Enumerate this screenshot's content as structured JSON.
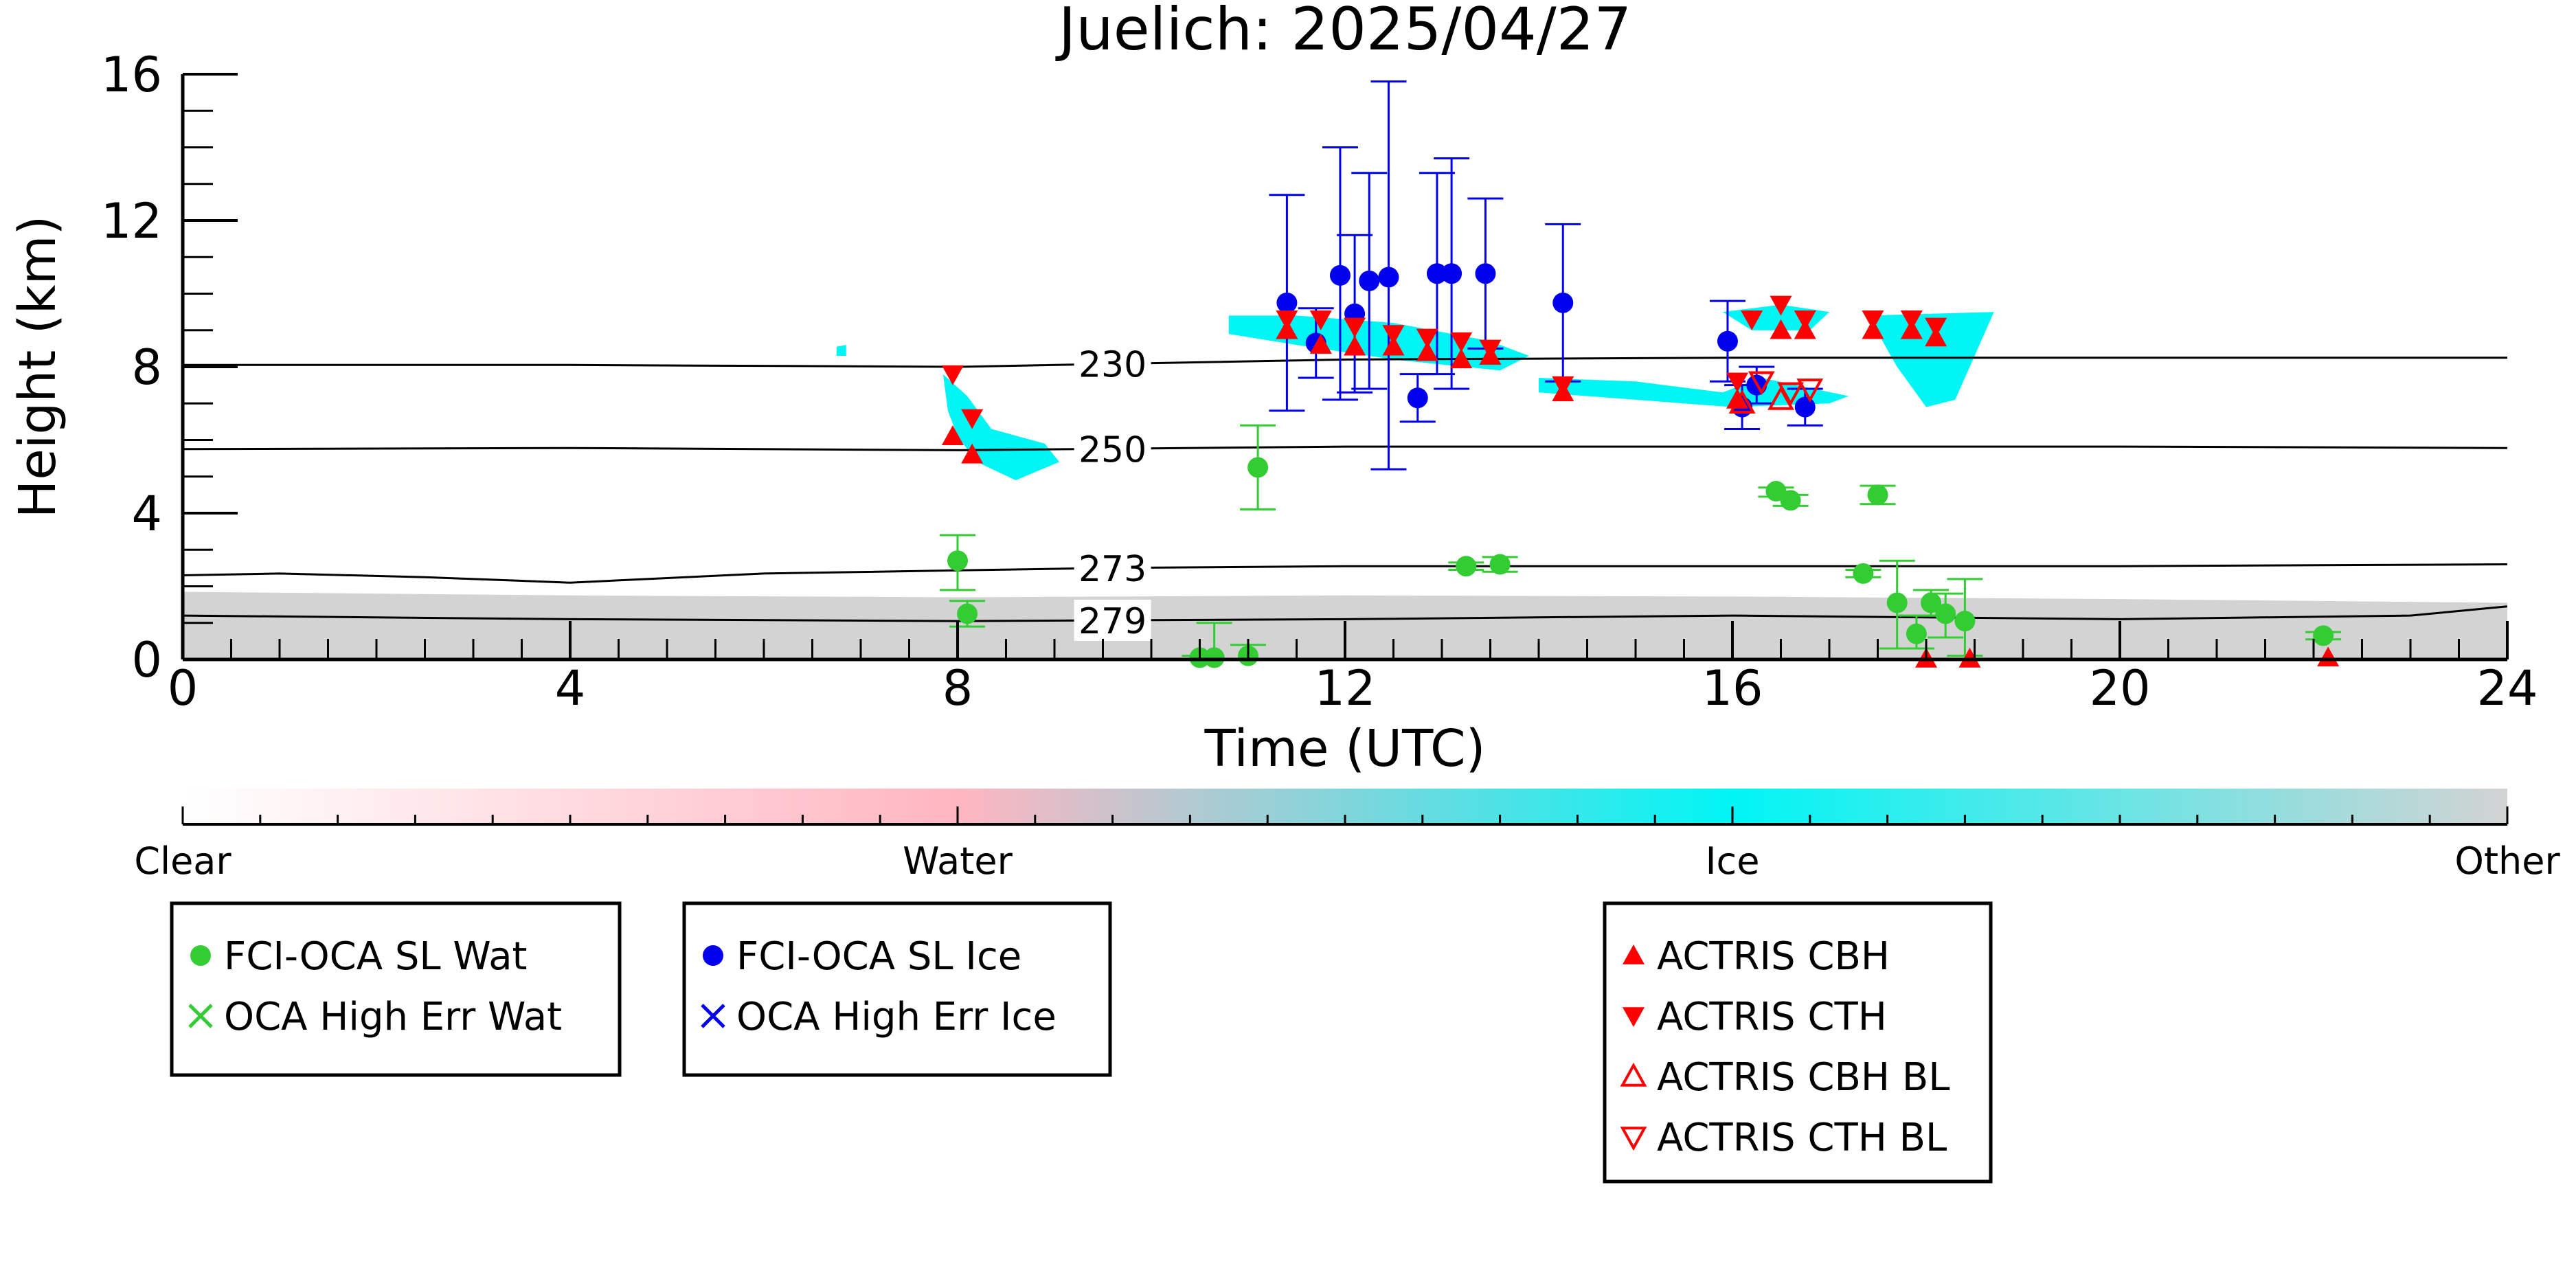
{
  "chart_data": {
    "type": "scatter",
    "title": "Juelich: 2025/04/27",
    "xlabel": "Time (UTC)",
    "ylabel": "Height (km)",
    "xlim": [
      0,
      24
    ],
    "ylim": [
      0,
      16
    ],
    "xticks": [
      0,
      4,
      8,
      12,
      16,
      20,
      24
    ],
    "yticks": [
      0,
      4,
      8,
      12,
      16
    ],
    "grid": false,
    "colors": {
      "water_marker": "#33cc33",
      "ice_marker": "#0000ee",
      "actris": "#ff0000",
      "ice_cloud": "#00f5f5",
      "other": "#d3d3d3"
    },
    "contours": [
      {
        "label": "230",
        "points": [
          [
            0,
            8.05
          ],
          [
            4,
            8.05
          ],
          [
            8,
            8.0
          ],
          [
            12,
            8.2
          ],
          [
            16,
            8.25
          ],
          [
            20,
            8.25
          ],
          [
            24,
            8.25
          ]
        ]
      },
      {
        "label": "250",
        "points": [
          [
            0,
            5.75
          ],
          [
            4,
            5.78
          ],
          [
            8,
            5.72
          ],
          [
            12,
            5.82
          ],
          [
            16,
            5.82
          ],
          [
            20,
            5.82
          ],
          [
            24,
            5.78
          ]
        ]
      },
      {
        "label": "273",
        "points": [
          [
            0,
            2.3
          ],
          [
            1,
            2.35
          ],
          [
            2.5,
            2.25
          ],
          [
            4,
            2.1
          ],
          [
            6,
            2.35
          ],
          [
            9.5,
            2.5
          ],
          [
            12,
            2.55
          ],
          [
            16,
            2.55
          ],
          [
            20,
            2.55
          ],
          [
            24,
            2.6
          ]
        ]
      },
      {
        "label": "279",
        "points": [
          [
            0,
            1.2
          ],
          [
            4,
            1.1
          ],
          [
            8,
            1.05
          ],
          [
            12,
            1.1
          ],
          [
            16,
            1.2
          ],
          [
            20,
            1.1
          ],
          [
            23,
            1.2
          ],
          [
            24,
            1.45
          ]
        ]
      }
    ],
    "cloud_regions": [
      {
        "phase": "Ice",
        "points": [
          [
            7.85,
            7.8
          ],
          [
            8.1,
            7.2
          ],
          [
            8.35,
            6.3
          ],
          [
            8.9,
            5.9
          ],
          [
            9.05,
            5.4
          ],
          [
            8.6,
            4.9
          ],
          [
            8.2,
            5.4
          ],
          [
            8.0,
            6.1
          ],
          [
            7.9,
            6.8
          ]
        ]
      },
      {
        "phase": "Ice",
        "points": [
          [
            6.75,
            8.55
          ],
          [
            6.85,
            8.6
          ],
          [
            6.85,
            8.3
          ],
          [
            6.75,
            8.3
          ]
        ]
      },
      {
        "phase": "Ice",
        "points": [
          [
            10.8,
            9.4
          ],
          [
            11.5,
            9.4
          ],
          [
            12.5,
            9.2
          ],
          [
            13.5,
            8.7
          ],
          [
            13.9,
            8.3
          ],
          [
            13.6,
            7.9
          ],
          [
            12.5,
            8.2
          ],
          [
            11.5,
            8.6
          ],
          [
            10.8,
            8.9
          ]
        ]
      },
      {
        "phase": "Ice",
        "points": [
          [
            14.0,
            7.7
          ],
          [
            15.0,
            7.6
          ],
          [
            15.9,
            7.3
          ],
          [
            16.3,
            7.7
          ],
          [
            17.2,
            7.2
          ],
          [
            17.0,
            7.0
          ],
          [
            16.0,
            6.9
          ],
          [
            15.0,
            7.1
          ],
          [
            14.0,
            7.3
          ]
        ]
      },
      {
        "phase": "Ice",
        "points": [
          [
            15.9,
            9.5
          ],
          [
            16.5,
            9.7
          ],
          [
            17.0,
            9.5
          ],
          [
            16.8,
            9.0
          ],
          [
            16.2,
            9.0
          ]
        ]
      },
      {
        "phase": "Ice",
        "points": [
          [
            17.4,
            9.4
          ],
          [
            18.7,
            9.5
          ],
          [
            18.3,
            7.1
          ],
          [
            18.0,
            6.9
          ],
          [
            17.7,
            8.0
          ]
        ]
      }
    ],
    "other_band": {
      "phase": "Other",
      "points": [
        [
          0,
          1.85
        ],
        [
          4,
          1.75
        ],
        [
          8,
          1.7
        ],
        [
          12,
          1.75
        ],
        [
          16,
          1.72
        ],
        [
          20,
          1.65
        ],
        [
          24,
          1.55
        ]
      ]
    },
    "series": [
      {
        "name": "FCI-OCA SL Wat",
        "marker": "filled-circle",
        "color": "#33cc33",
        "points": [
          {
            "x": 8.0,
            "y": 2.7,
            "ylo": 1.9,
            "yhi": 3.4
          },
          {
            "x": 8.1,
            "y": 1.25,
            "ylo": 0.9,
            "yhi": 1.6
          },
          {
            "x": 10.5,
            "y": 0.05,
            "ylo": 0.0,
            "yhi": 0.1
          },
          {
            "x": 10.65,
            "y": 0.05,
            "ylo": 0.0,
            "yhi": 1.0
          },
          {
            "x": 11.0,
            "y": 0.1,
            "ylo": 0.0,
            "yhi": 0.4
          },
          {
            "x": 11.1,
            "y": 5.25,
            "ylo": 4.1,
            "yhi": 6.4
          },
          {
            "x": 13.25,
            "y": 2.55,
            "ylo": 2.45,
            "yhi": 2.65
          },
          {
            "x": 13.6,
            "y": 2.6,
            "ylo": 2.4,
            "yhi": 2.8
          },
          {
            "x": 16.45,
            "y": 4.6,
            "ylo": 4.45,
            "yhi": 4.7
          },
          {
            "x": 16.6,
            "y": 4.35,
            "ylo": 4.2,
            "yhi": 4.5
          },
          {
            "x": 17.35,
            "y": 2.35,
            "ylo": 2.25,
            "yhi": 2.45
          },
          {
            "x": 17.5,
            "y": 4.5,
            "ylo": 4.25,
            "yhi": 4.75
          },
          {
            "x": 17.7,
            "y": 1.55,
            "ylo": 0.3,
            "yhi": 2.7
          },
          {
            "x": 17.9,
            "y": 0.7,
            "ylo": 0.3,
            "yhi": 1.2
          },
          {
            "x": 18.05,
            "y": 1.55,
            "ylo": 1.2,
            "yhi": 1.9
          },
          {
            "x": 18.2,
            "y": 1.25,
            "ylo": 0.6,
            "yhi": 1.8
          },
          {
            "x": 18.4,
            "y": 1.05,
            "ylo": 0.1,
            "yhi": 2.2
          },
          {
            "x": 22.1,
            "y": 0.65,
            "ylo": 0.55,
            "yhi": 0.75
          }
        ]
      },
      {
        "name": "OCA High Err Wat",
        "marker": "x",
        "color": "#33cc33",
        "points": []
      },
      {
        "name": "FCI-OCA SL Ice",
        "marker": "filled-circle",
        "color": "#0000ee",
        "points": [
          {
            "x": 11.4,
            "y": 9.75,
            "ylo": 6.8,
            "yhi": 12.7
          },
          {
            "x": 11.7,
            "y": 8.65,
            "ylo": 7.7,
            "yhi": 9.6
          },
          {
            "x": 11.95,
            "y": 10.5,
            "ylo": 7.1,
            "yhi": 14.0
          },
          {
            "x": 12.1,
            "y": 9.45,
            "ylo": 7.3,
            "yhi": 11.6
          },
          {
            "x": 12.25,
            "y": 10.35,
            "ylo": 7.4,
            "yhi": 13.3
          },
          {
            "x": 12.45,
            "y": 10.45,
            "ylo": 5.2,
            "yhi": 15.8
          },
          {
            "x": 12.75,
            "y": 7.15,
            "ylo": 6.5,
            "yhi": 7.8
          },
          {
            "x": 12.95,
            "y": 10.55,
            "ylo": 7.8,
            "yhi": 13.3
          },
          {
            "x": 13.1,
            "y": 10.55,
            "ylo": 7.4,
            "yhi": 13.7
          },
          {
            "x": 13.45,
            "y": 10.55,
            "ylo": 8.5,
            "yhi": 12.6
          },
          {
            "x": 14.25,
            "y": 9.75,
            "ylo": 7.6,
            "yhi": 11.9
          },
          {
            "x": 15.95,
            "y": 8.7,
            "ylo": 7.6,
            "yhi": 9.8
          },
          {
            "x": 16.1,
            "y": 6.9,
            "ylo": 6.3,
            "yhi": 7.5
          },
          {
            "x": 16.25,
            "y": 7.5,
            "ylo": 7.0,
            "yhi": 8.0
          },
          {
            "x": 16.75,
            "y": 6.9,
            "ylo": 6.4,
            "yhi": 7.4
          }
        ]
      },
      {
        "name": "OCA High Err Ice",
        "marker": "x",
        "color": "#0000ee",
        "points": []
      },
      {
        "name": "ACTRIS CBH",
        "marker": "triangle-up",
        "color": "#ff0000",
        "points": [
          {
            "x": 7.95,
            "y": 6.1
          },
          {
            "x": 8.15,
            "y": 5.6
          },
          {
            "x": 11.4,
            "y": 9.0
          },
          {
            "x": 11.75,
            "y": 8.6
          },
          {
            "x": 12.1,
            "y": 8.55
          },
          {
            "x": 12.5,
            "y": 8.55
          },
          {
            "x": 12.85,
            "y": 8.4
          },
          {
            "x": 13.2,
            "y": 8.2
          },
          {
            "x": 13.5,
            "y": 8.3
          },
          {
            "x": 14.25,
            "y": 7.3
          },
          {
            "x": 16.05,
            "y": 7.1
          },
          {
            "x": 16.5,
            "y": 9.0
          },
          {
            "x": 16.75,
            "y": 9.0
          },
          {
            "x": 17.45,
            "y": 9.0
          },
          {
            "x": 17.85,
            "y": 9.0
          },
          {
            "x": 18.1,
            "y": 8.8
          },
          {
            "x": 18.0,
            "y": 0.02
          },
          {
            "x": 18.45,
            "y": 0.02
          },
          {
            "x": 22.15,
            "y": 0.05
          }
        ]
      },
      {
        "name": "ACTRIS CTH",
        "marker": "triangle-down",
        "color": "#ff0000",
        "points": [
          {
            "x": 7.95,
            "y": 7.8
          },
          {
            "x": 8.15,
            "y": 6.6
          },
          {
            "x": 11.4,
            "y": 9.3
          },
          {
            "x": 11.75,
            "y": 9.3
          },
          {
            "x": 12.1,
            "y": 9.1
          },
          {
            "x": 12.5,
            "y": 8.9
          },
          {
            "x": 12.85,
            "y": 8.8
          },
          {
            "x": 13.2,
            "y": 8.7
          },
          {
            "x": 13.5,
            "y": 8.5
          },
          {
            "x": 14.25,
            "y": 7.5
          },
          {
            "x": 16.05,
            "y": 7.6
          },
          {
            "x": 16.2,
            "y": 9.3
          },
          {
            "x": 16.5,
            "y": 9.7
          },
          {
            "x": 16.75,
            "y": 9.3
          },
          {
            "x": 17.45,
            "y": 9.3
          },
          {
            "x": 17.85,
            "y": 9.3
          },
          {
            "x": 18.1,
            "y": 9.1
          }
        ]
      },
      {
        "name": "ACTRIS CBH BL",
        "marker": "triangle-up-open",
        "color": "#ff0000",
        "points": [
          {
            "x": 16.1,
            "y": 7.0
          },
          {
            "x": 16.5,
            "y": 7.1
          }
        ]
      },
      {
        "name": "ACTRIS CTH BL",
        "marker": "triangle-down-open",
        "color": "#ff0000",
        "points": [
          {
            "x": 16.3,
            "y": 7.6
          },
          {
            "x": 16.6,
            "y": 7.3
          },
          {
            "x": 16.8,
            "y": 7.4
          }
        ]
      }
    ],
    "colorbar": {
      "labels": [
        "Clear",
        "Water",
        "Ice",
        "Other"
      ],
      "stops": [
        "#ffffff",
        "#ffb6c1",
        "#00f5f5",
        "#d3d3d3"
      ]
    },
    "legends": [
      {
        "entries": [
          0,
          1
        ]
      },
      {
        "entries": [
          2,
          3
        ]
      },
      {
        "entries": [
          4,
          5,
          6,
          7
        ]
      }
    ]
  }
}
